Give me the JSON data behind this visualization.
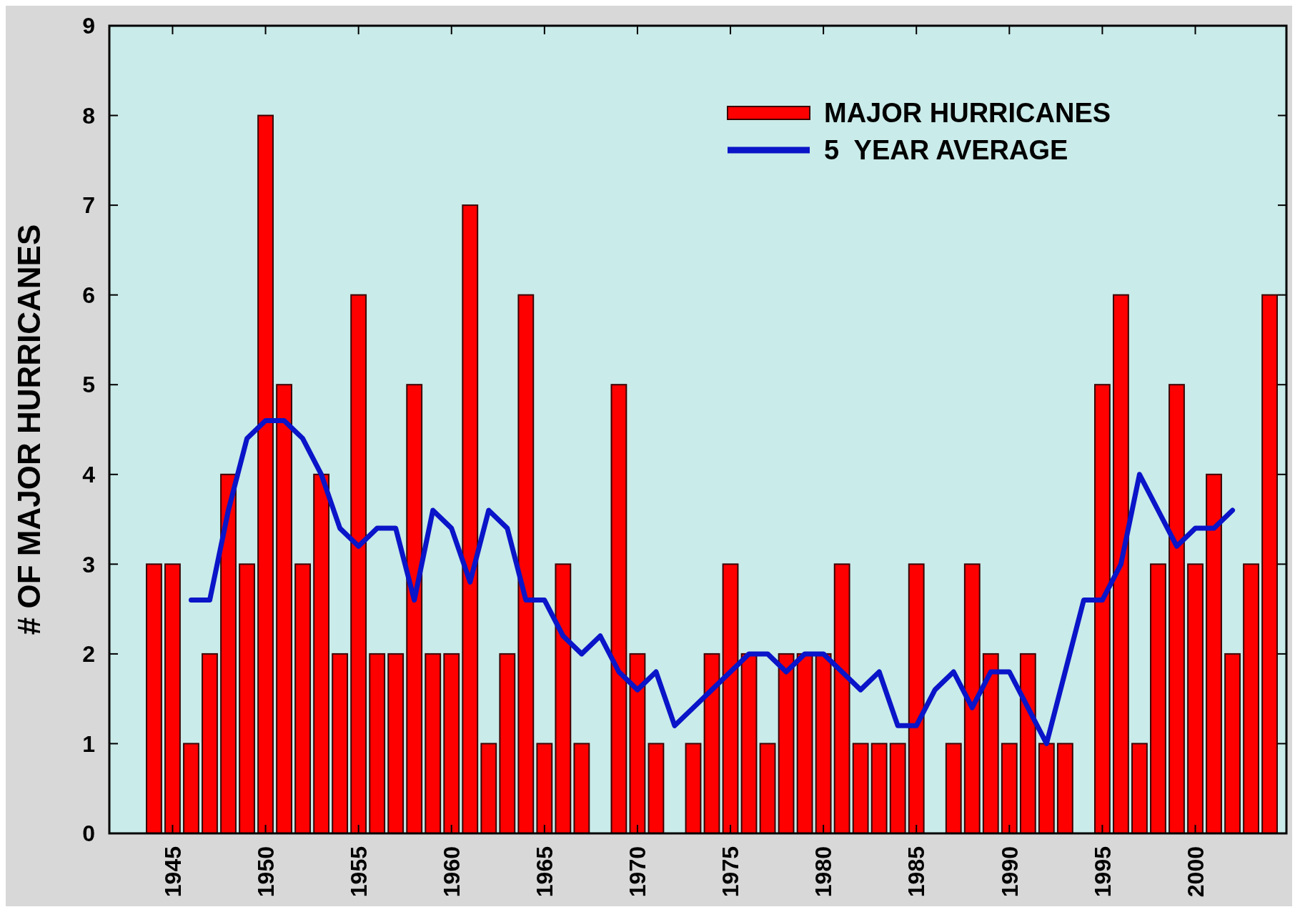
{
  "chart_data": {
    "type": "bar",
    "ylabel": "# OF MAJOR HURRICANES",
    "xlim": [
      1941.6,
      2004.9
    ],
    "xticks": [
      1945,
      1950,
      1955,
      1960,
      1965,
      1970,
      1975,
      1980,
      1985,
      1990,
      1995,
      2000
    ],
    "ylim": [
      0,
      9
    ],
    "yticks": [
      0,
      1,
      2,
      3,
      4,
      5,
      6,
      7,
      8,
      9
    ],
    "grid": false,
    "legend": "top right",
    "x": [
      1944,
      1945,
      1946,
      1947,
      1948,
      1949,
      1950,
      1951,
      1952,
      1953,
      1954,
      1955,
      1956,
      1957,
      1958,
      1959,
      1960,
      1961,
      1962,
      1963,
      1964,
      1965,
      1966,
      1967,
      1968,
      1969,
      1970,
      1971,
      1972,
      1973,
      1974,
      1975,
      1976,
      1977,
      1978,
      1979,
      1980,
      1981,
      1982,
      1983,
      1984,
      1985,
      1986,
      1987,
      1988,
      1989,
      1990,
      1991,
      1992,
      1993,
      1994,
      1995,
      1996,
      1997,
      1998,
      1999,
      2000,
      2001,
      2002,
      2003,
      2004
    ],
    "series": [
      {
        "name": "MAJOR HURRICANES",
        "color": "#ff0000",
        "values": [
          3,
          3,
          1,
          2,
          4,
          3,
          8,
          5,
          3,
          4,
          2,
          6,
          2,
          2,
          5,
          2,
          2,
          7,
          1,
          2,
          6,
          1,
          3,
          1,
          0,
          5,
          2,
          1,
          0,
          1,
          2,
          3,
          2,
          1,
          2,
          2,
          2,
          3,
          1,
          1,
          1,
          3,
          0,
          1,
          3,
          2,
          1,
          2,
          1,
          1,
          0,
          5,
          6,
          1,
          3,
          5,
          3,
          4,
          2,
          3,
          6
        ]
      },
      {
        "name": "5  YEAR AVERAGE",
        "type": "line",
        "color": "#0a14c8",
        "x": [
          1946,
          1947,
          1948,
          1949,
          1950,
          1951,
          1952,
          1953,
          1954,
          1955,
          1956,
          1957,
          1958,
          1959,
          1960,
          1961,
          1962,
          1963,
          1964,
          1965,
          1966,
          1967,
          1968,
          1969,
          1970,
          1971,
          1972,
          1973,
          1974,
          1975,
          1976,
          1977,
          1978,
          1979,
          1980,
          1981,
          1982,
          1983,
          1984,
          1985,
          1986,
          1987,
          1988,
          1989,
          1990,
          1991,
          1992,
          1993,
          1994,
          1995,
          1996,
          1997,
          1998,
          1999,
          2000,
          2001,
          2002
        ],
        "values": [
          2.6,
          2.6,
          3.6,
          4.4,
          4.6,
          4.6,
          4.4,
          4.0,
          3.4,
          3.2,
          3.4,
          3.4,
          2.6,
          3.6,
          3.4,
          2.8,
          3.6,
          3.4,
          2.6,
          2.6,
          2.2,
          2.0,
          2.2,
          1.8,
          1.6,
          1.8,
          1.2,
          1.4,
          1.6,
          1.8,
          2.0,
          2.0,
          1.8,
          2.0,
          2.0,
          1.8,
          1.6,
          1.8,
          1.2,
          1.2,
          1.6,
          1.8,
          1.4,
          1.8,
          1.8,
          1.4,
          1.0,
          1.8,
          2.6,
          2.6,
          3.0,
          4.0,
          3.6,
          3.2,
          3.4,
          3.4,
          3.6
        ]
      }
    ]
  }
}
